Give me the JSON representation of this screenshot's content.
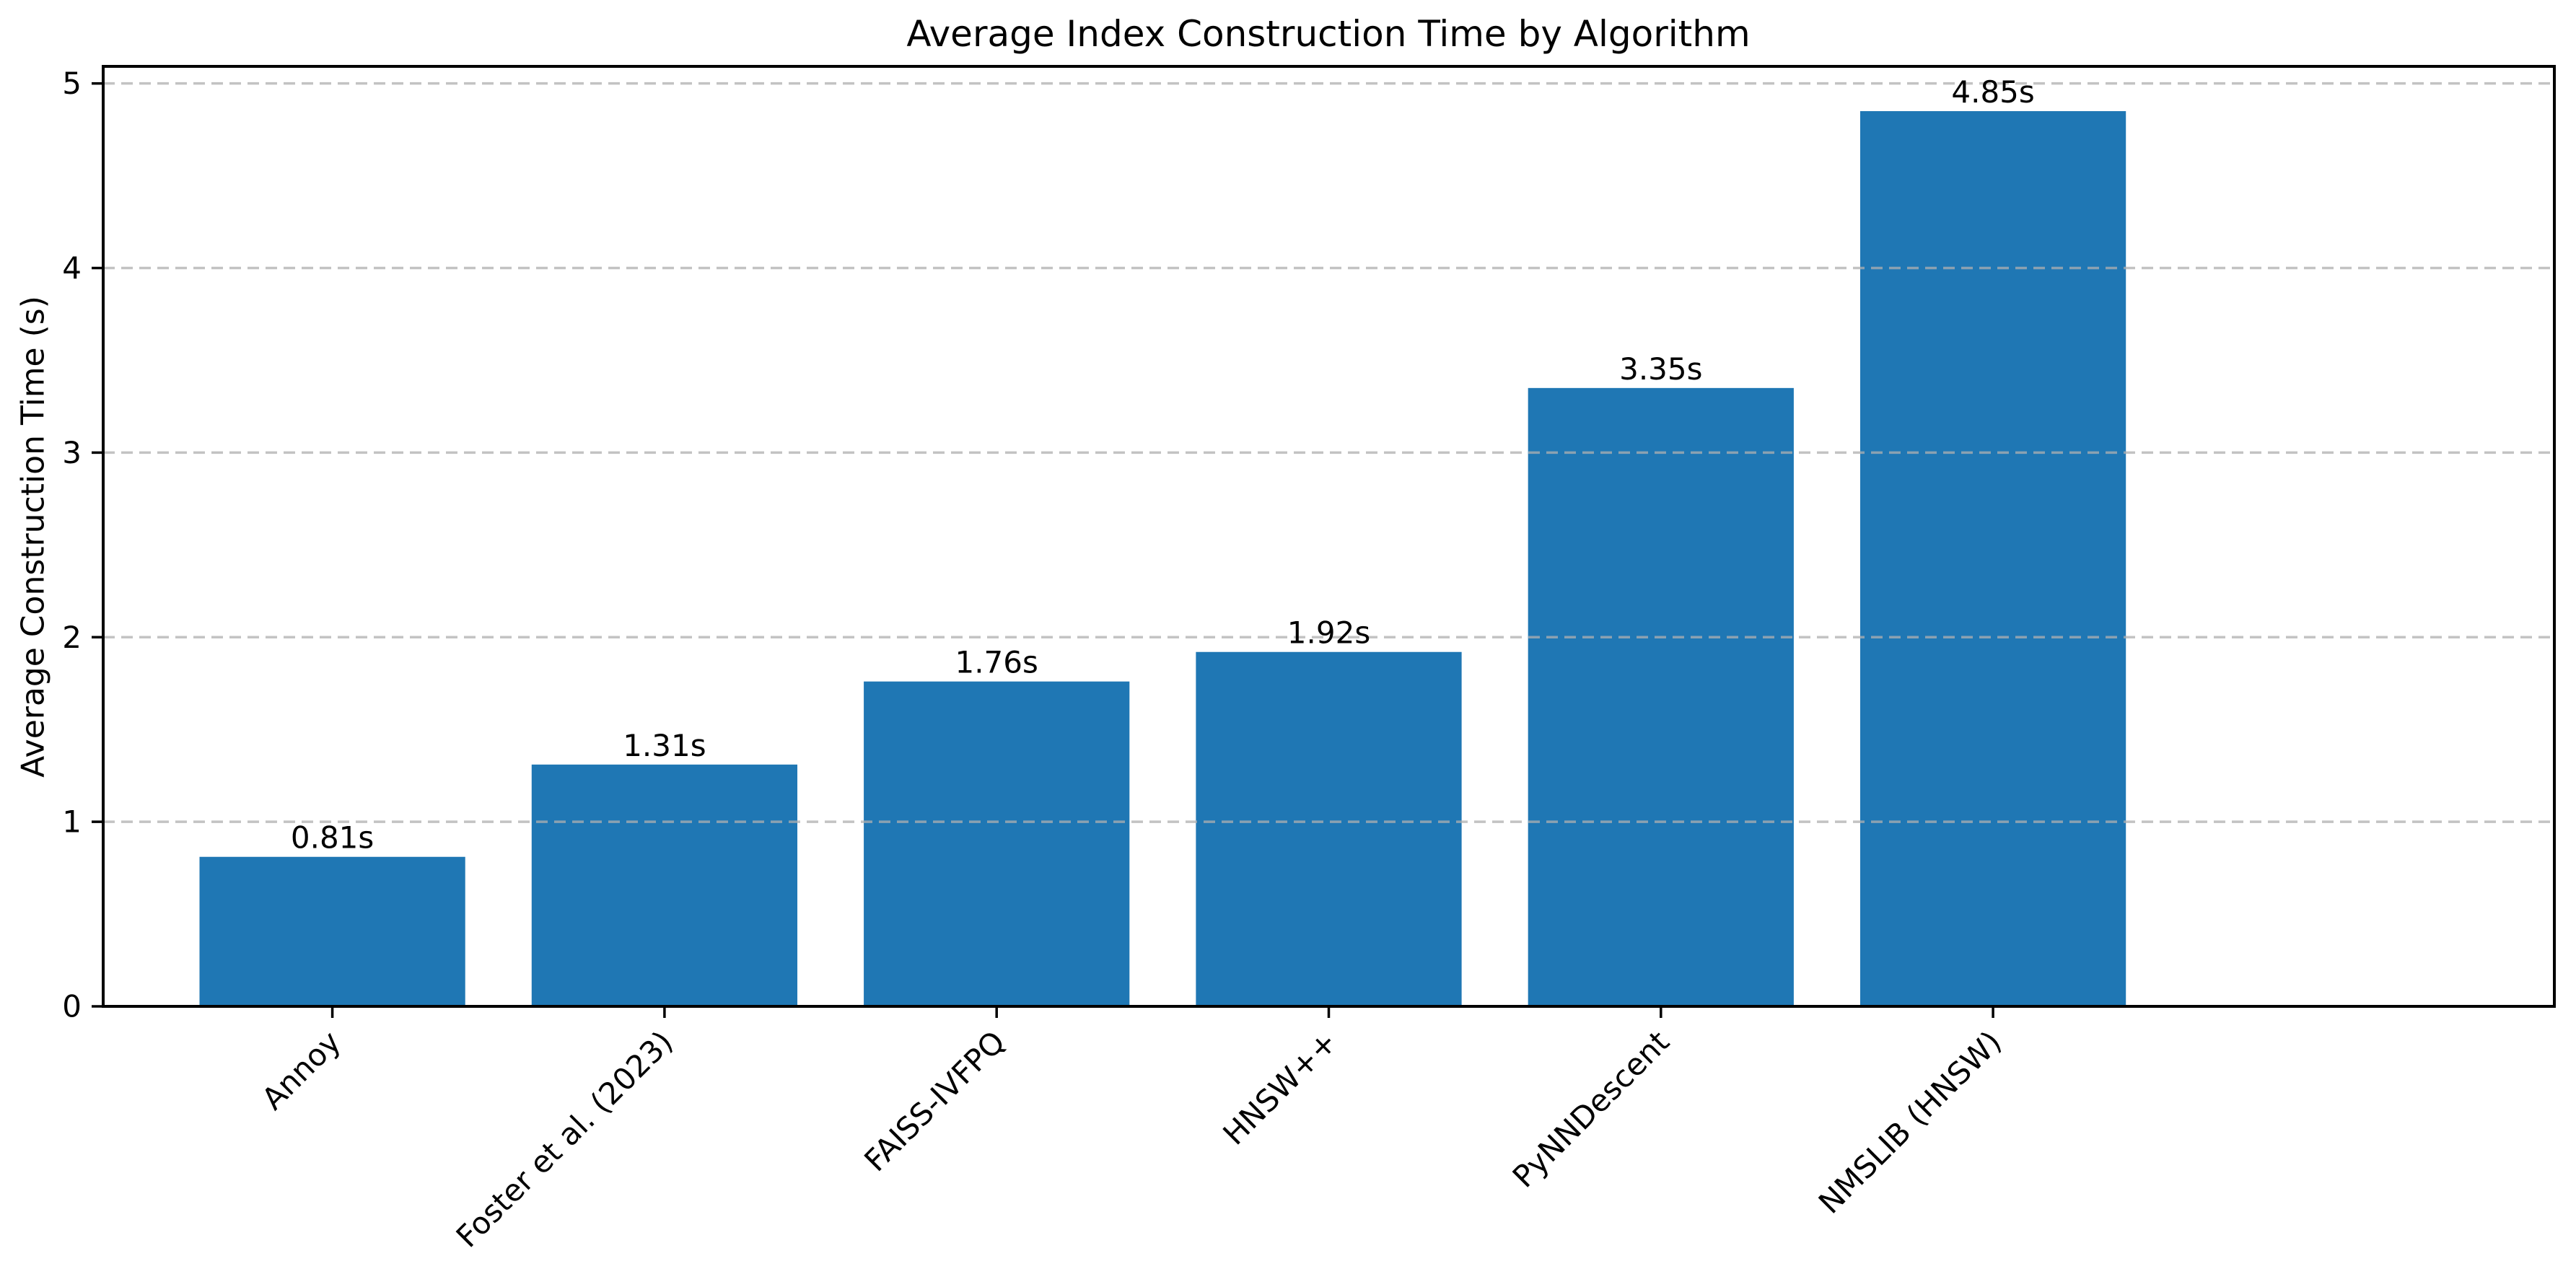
{
  "figure": {
    "background": "#ffffff"
  },
  "chart_data": {
    "type": "bar",
    "title": "Average Index Construction Time by Algorithm",
    "xlabel": "",
    "ylabel": "Average Construction Time (s)",
    "categories": [
      "Annoy",
      "Foster et al. (2023)",
      "FAISS-IVFPQ",
      "HNSW++",
      "PyNNDescent",
      "NMSLIB (HNSW)"
    ],
    "values": [
      0.81,
      1.31,
      1.76,
      1.92,
      3.35,
      4.85
    ],
    "bar_labels": [
      "0.81s",
      "1.31s",
      "1.76s",
      "1.92s",
      "3.35s",
      "4.85s"
    ],
    "y_ticks": [
      0,
      1,
      2,
      3,
      4,
      5
    ],
    "y_tick_labels": [
      "0",
      "1",
      "2",
      "3",
      "4",
      "5"
    ],
    "ylim": [
      0,
      5.0925
    ],
    "bar_color": "#1f77b4",
    "bar_width_fraction": 0.8,
    "x_tick_rotation_deg": 45,
    "grid": {
      "axis": "y",
      "style": "dashed",
      "color": "#b0b0b0",
      "above_bars": true
    },
    "legend": "none",
    "spine_color": "#000000"
  }
}
